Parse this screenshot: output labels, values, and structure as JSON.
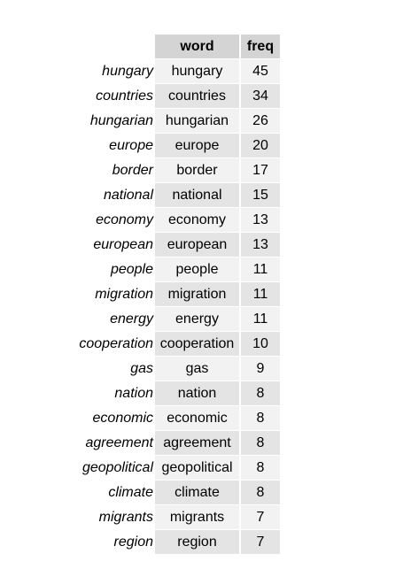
{
  "table": {
    "columns": [
      "word",
      "freq"
    ],
    "rows": [
      {
        "label": "hungary",
        "word": "hungary",
        "freq": "45"
      },
      {
        "label": "countries",
        "word": "countries",
        "freq": "34"
      },
      {
        "label": "hungarian",
        "word": "hungarian",
        "freq": "26"
      },
      {
        "label": "europe",
        "word": "europe",
        "freq": "20"
      },
      {
        "label": "border",
        "word": "border",
        "freq": "17"
      },
      {
        "label": "national",
        "word": "national",
        "freq": "15"
      },
      {
        "label": "economy",
        "word": "economy",
        "freq": "13"
      },
      {
        "label": "european",
        "word": "european",
        "freq": "13"
      },
      {
        "label": "people",
        "word": "people",
        "freq": "11"
      },
      {
        "label": "migration",
        "word": "migration",
        "freq": "11"
      },
      {
        "label": "energy",
        "word": "energy",
        "freq": "11"
      },
      {
        "label": "cooperation",
        "word": "cooperation",
        "freq": "10"
      },
      {
        "label": "gas",
        "word": "gas",
        "freq": "9"
      },
      {
        "label": "nation",
        "word": "nation",
        "freq": "8"
      },
      {
        "label": "economic",
        "word": "economic",
        "freq": "8"
      },
      {
        "label": "agreement",
        "word": "agreement",
        "freq": "8"
      },
      {
        "label": "geopolitical",
        "word": "geopolitical",
        "freq": "8"
      },
      {
        "label": "climate",
        "word": "climate",
        "freq": "8"
      },
      {
        "label": "migrants",
        "word": "migrants",
        "freq": "7"
      },
      {
        "label": "region",
        "word": "region",
        "freq": "7"
      }
    ]
  }
}
